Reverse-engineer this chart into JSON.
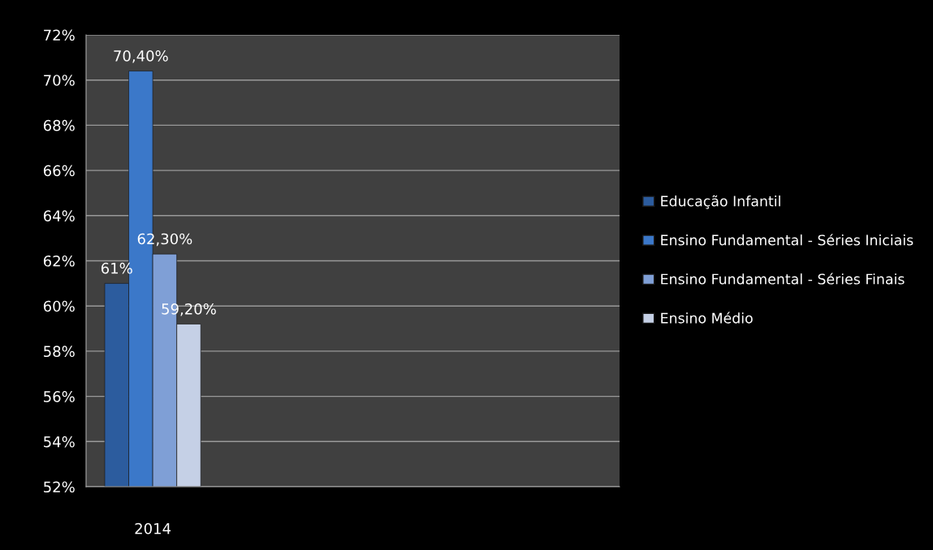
{
  "chart_data": {
    "type": "bar",
    "categories": [
      "2014",
      null,
      null,
      null
    ],
    "series": [
      {
        "name": "Educação Infantil",
        "color": "#2c5c9e",
        "values": [
          61,
          null,
          null,
          null
        ],
        "value_labels": [
          "61%",
          null,
          null,
          null
        ]
      },
      {
        "name": "Ensino Fundamental - Séries Iniciais",
        "color": "#3b78c9",
        "values": [
          70.4,
          null,
          null,
          null
        ],
        "value_labels": [
          "70,40%",
          null,
          null,
          null
        ]
      },
      {
        "name": "Ensino Fundamental - Séries Finais",
        "color": "#7f9fd6",
        "values": [
          62.3,
          null,
          null,
          null
        ],
        "value_labels": [
          "62,30%",
          null,
          null,
          null
        ]
      },
      {
        "name": "Ensino Médio",
        "color": "#c5d0e6",
        "values": [
          59.2,
          null,
          null,
          null
        ],
        "value_labels": [
          "59,20%",
          null,
          null,
          null
        ]
      }
    ],
    "ylim": [
      52,
      72
    ],
    "yticks": [
      {
        "value": 52,
        "label": "52%"
      },
      {
        "value": 54,
        "label": "54%"
      },
      {
        "value": 56,
        "label": "56%"
      },
      {
        "value": 58,
        "label": "58%"
      },
      {
        "value": 60,
        "label": "60%"
      },
      {
        "value": 62,
        "label": "62%"
      },
      {
        "value": 64,
        "label": "64%"
      },
      {
        "value": 66,
        "label": "66%"
      },
      {
        "value": 68,
        "label": "68%"
      },
      {
        "value": 70,
        "label": "70%"
      },
      {
        "value": 72,
        "label": "72%"
      }
    ],
    "grid": "y",
    "legend": "right"
  }
}
